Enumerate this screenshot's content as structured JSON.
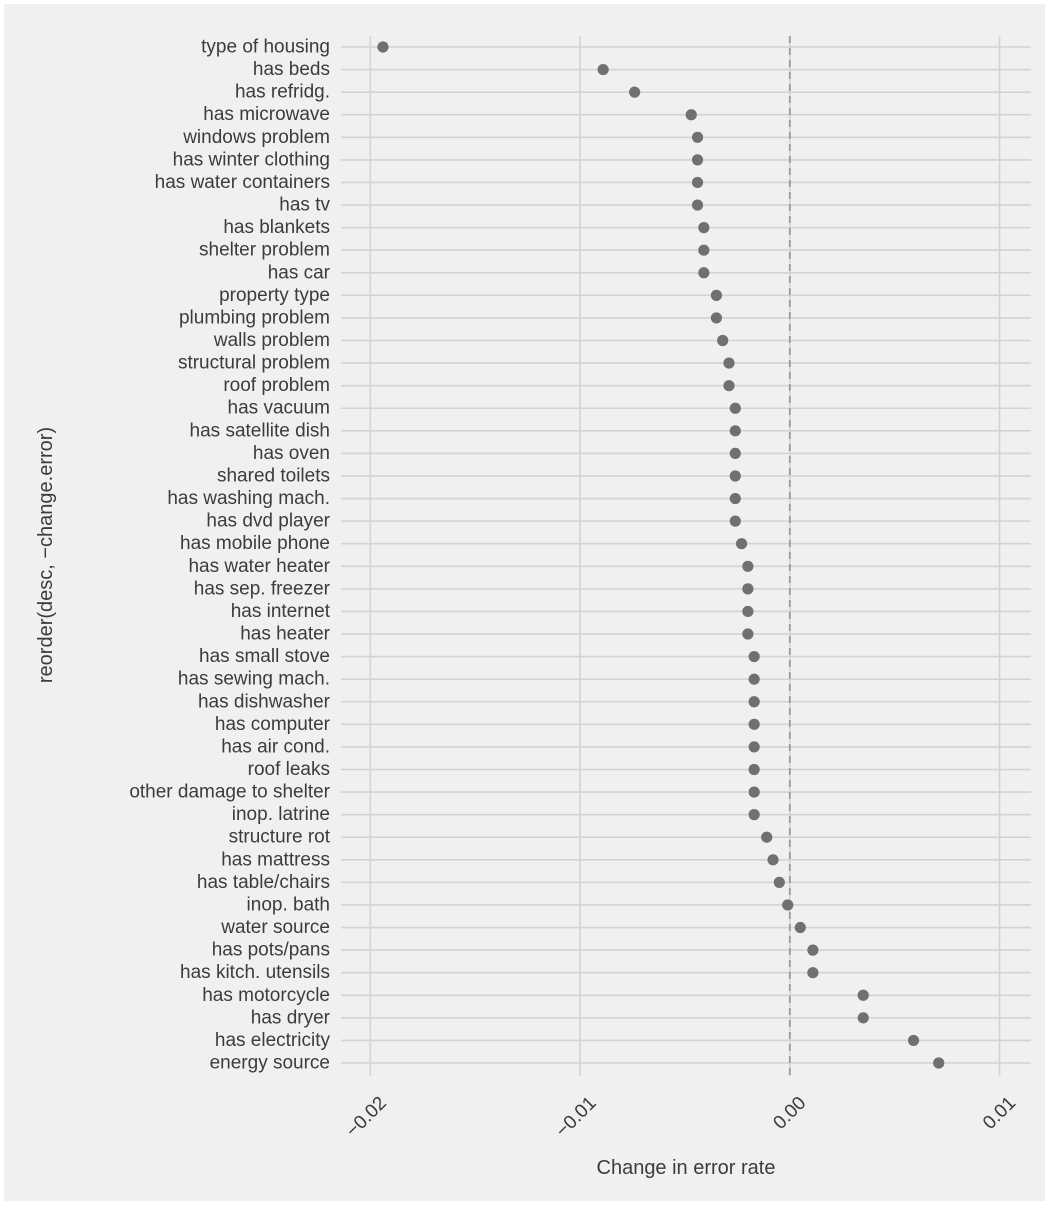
{
  "chart_data": {
    "type": "scatter",
    "xlabel": "Change in error rate",
    "ylabel": "reorder(desc, −change.error)",
    "xlim": [
      -0.0214,
      0.0115
    ],
    "x_ticks": [
      -0.02,
      -0.01,
      0.0,
      0.01
    ],
    "x_tick_labels": [
      "−0.02",
      "−0.01",
      "0.00",
      "0.01"
    ],
    "reference_line": {
      "x": 0.0,
      "style": "dashed"
    },
    "grid": true,
    "theme": {
      "panel_background": "#f0f0f0",
      "plot_background": "#f0f0f0",
      "outer_background": "#ffffff",
      "grid_color": "#d3d3d3",
      "point_color": "#707070",
      "text_color": "#3c3c3c",
      "ref_line_color": "#9a9a9a"
    },
    "categories": [
      "type of housing",
      "has beds",
      "has refridg.",
      "has microwave",
      "windows problem",
      "has winter clothing",
      "has water containers",
      "has tv",
      "has blankets",
      "shelter problem",
      "has car",
      "property type",
      "plumbing problem",
      "walls problem",
      "structural problem",
      "roof problem",
      "has vacuum",
      "has satellite dish",
      "has oven",
      "shared toilets",
      "has washing mach.",
      "has dvd player",
      "has mobile phone",
      "has water heater",
      "has sep. freezer",
      "has internet",
      "has heater",
      "has small stove",
      "has sewing mach.",
      "has dishwasher",
      "has computer",
      "has air cond.",
      "roof leaks",
      "other damage to shelter",
      "inop. latrine",
      "structure rot",
      "has mattress",
      "has table/chairs",
      "inop. bath",
      "water source",
      "has pots/pans",
      "has kitch. utensils",
      "has motorcycle",
      "has dryer",
      "has electricity",
      "energy source"
    ],
    "values": [
      -0.0194,
      -0.0089,
      -0.0074,
      -0.0047,
      -0.0044,
      -0.0044,
      -0.0044,
      -0.0044,
      -0.0041,
      -0.0041,
      -0.0041,
      -0.0035,
      -0.0035,
      -0.0032,
      -0.0029,
      -0.0029,
      -0.0026,
      -0.0026,
      -0.0026,
      -0.0026,
      -0.0026,
      -0.0026,
      -0.0023,
      -0.002,
      -0.002,
      -0.002,
      -0.002,
      -0.0017,
      -0.0017,
      -0.0017,
      -0.0017,
      -0.0017,
      -0.0017,
      -0.0017,
      -0.0017,
      -0.0011,
      -0.0008,
      -0.0005,
      -0.0001,
      0.0005,
      0.0011,
      0.0011,
      0.0035,
      0.0035,
      0.0059,
      0.0071
    ]
  }
}
